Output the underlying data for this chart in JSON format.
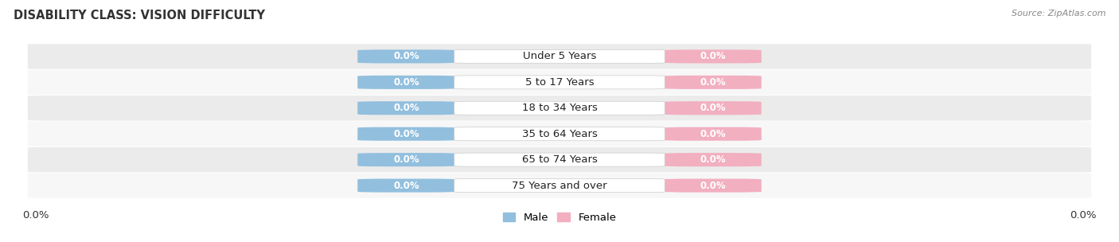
{
  "title": "DISABILITY CLASS: VISION DIFFICULTY",
  "source": "Source: ZipAtlas.com",
  "categories": [
    "Under 5 Years",
    "5 to 17 Years",
    "18 to 34 Years",
    "35 to 64 Years",
    "65 to 74 Years",
    "75 Years and over"
  ],
  "male_values": [
    0.0,
    0.0,
    0.0,
    0.0,
    0.0,
    0.0
  ],
  "female_values": [
    0.0,
    0.0,
    0.0,
    0.0,
    0.0,
    0.0
  ],
  "male_color": "#92bfde",
  "female_color": "#f2afc0",
  "row_bg_color": "#ebebeb",
  "row_bg_alt": "#f7f7f7",
  "xlim_left": "0.0%",
  "xlim_right": "0.0%",
  "label_fontsize": 9.5,
  "title_fontsize": 10.5,
  "value_label_fontsize": 8.5,
  "legend_male": "Male",
  "legend_female": "Female"
}
